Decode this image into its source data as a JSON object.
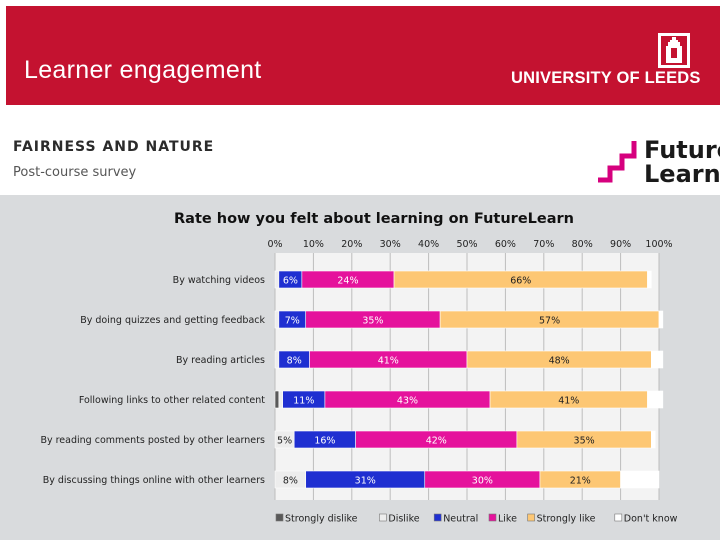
{
  "header": {
    "title": "Learner engagement",
    "institution": "UNIVERSITY OF LEEDS",
    "background_color": "#c41230"
  },
  "section": {
    "topic": "FAIRNESS AND NATURE",
    "subtitle": "Post-course survey"
  },
  "logo": {
    "line1": "Future",
    "line2": "Learn",
    "accent_color": "#d6007e"
  },
  "chart_data": {
    "type": "bar",
    "orientation": "horizontal",
    "stacked": true,
    "title": "Rate how you felt about learning on FutureLearn",
    "x_ticks": [
      "0%",
      "10%",
      "20%",
      "30%",
      "40%",
      "50%",
      "60%",
      "70%",
      "80%",
      "90%",
      "100%"
    ],
    "xlim": [
      0,
      100
    ],
    "grid": true,
    "legend_position": "bottom",
    "categories": [
      "By watching videos",
      "By doing quizzes and getting feedback",
      "By reading articles",
      "Following links to other related content",
      "By reading comments posted by other learners",
      "By discussing things online with other learners"
    ],
    "series": [
      {
        "name": "Strongly dislike",
        "color": "#595959",
        "values": [
          0,
          0,
          0,
          1,
          0,
          0
        ],
        "labels": [
          "",
          "",
          "",
          "",
          "",
          ""
        ]
      },
      {
        "name": "Dislike",
        "color": "#ededed",
        "values": [
          1,
          1,
          1,
          1,
          5,
          8
        ],
        "labels": [
          "",
          "",
          "",
          "",
          "5%",
          "8%"
        ]
      },
      {
        "name": "Neutral",
        "color": "#1f2fd1",
        "values": [
          6,
          7,
          8,
          11,
          16,
          31
        ],
        "labels": [
          "6%",
          "7%",
          "8%",
          "11%",
          "16%",
          "31%"
        ]
      },
      {
        "name": "Like",
        "color": "#e5129c",
        "values": [
          24,
          35,
          41,
          43,
          42,
          30
        ],
        "labels": [
          "24%",
          "35%",
          "41%",
          "43%",
          "42%",
          "30%"
        ]
      },
      {
        "name": "Strongly like",
        "color": "#fdc774",
        "values": [
          66,
          57,
          48,
          41,
          35,
          21
        ],
        "labels": [
          "66%",
          "57%",
          "48%",
          "41%",
          "35%",
          "21%"
        ]
      },
      {
        "name": "Don't know",
        "color": "#ffffff",
        "values": [
          1,
          1,
          3,
          4,
          1,
          10
        ],
        "labels": [
          "",
          "",
          "",
          "",
          "",
          ""
        ]
      }
    ]
  }
}
